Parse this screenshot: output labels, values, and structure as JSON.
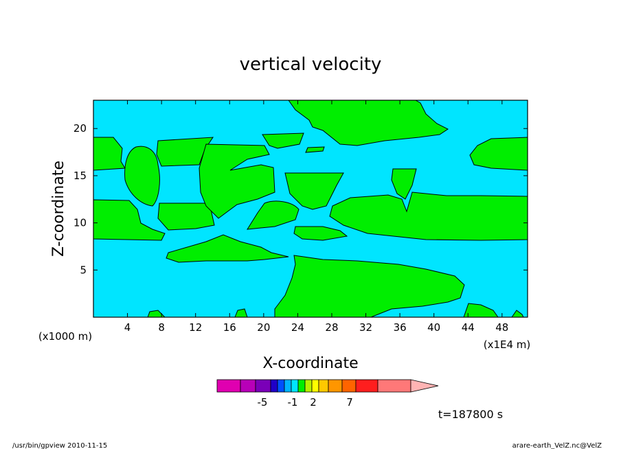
{
  "chart_data": {
    "type": "heatmap",
    "title": "vertical velocity",
    "xlabel": "X-coordinate",
    "ylabel": "Z-coordinate",
    "x_unit_left": "(x1000 m)",
    "x_unit_right": "(x1E4 m)",
    "xlim": [
      0,
      51
    ],
    "ylim": [
      0,
      23
    ],
    "x_ticks": [
      4,
      8,
      12,
      16,
      20,
      24,
      28,
      32,
      36,
      40,
      44,
      48
    ],
    "y_ticks": [
      5,
      10,
      15,
      20
    ],
    "field_colors": {
      "negative": "#00e5ff",
      "positive": "#00ee00"
    },
    "colorbar": {
      "colors": [
        "#e000b0",
        "#b800b8",
        "#7a00b8",
        "#2000c8",
        "#0050ff",
        "#00b4ff",
        "#00e5ff",
        "#00ee00",
        "#b8f000",
        "#ffff00",
        "#ffc800",
        "#ff9600",
        "#ff6400",
        "#ff1e1e",
        "#ff7878",
        "#ffb4b4"
      ],
      "labels": [
        "-5",
        "-1",
        "2",
        "7"
      ]
    },
    "time_label": "t=187800 s"
  },
  "footer": {
    "left": "/usr/bin/gpview   2010-11-15",
    "right": "arare-earth_VelZ.nc@VelZ"
  }
}
